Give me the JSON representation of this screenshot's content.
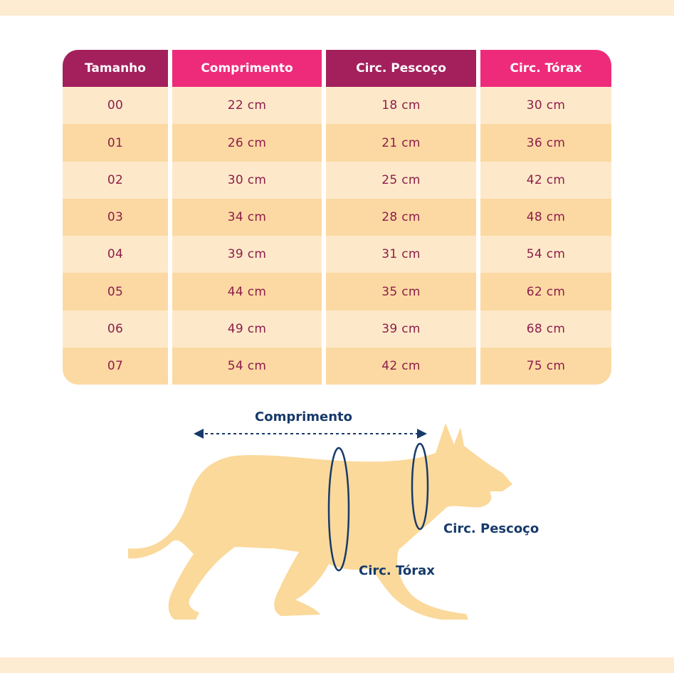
{
  "table": {
    "headers": [
      "Tamanho",
      "Comprimento",
      "Circ. Pescoço",
      "Circ. Tórax"
    ],
    "rows": [
      [
        "00",
        "22 cm",
        "18 cm",
        "30 cm"
      ],
      [
        "01",
        "26 cm",
        "21 cm",
        "36 cm"
      ],
      [
        "02",
        "30 cm",
        "25 cm",
        "42 cm"
      ],
      [
        "03",
        "34 cm",
        "28 cm",
        "48 cm"
      ],
      [
        "04",
        "39 cm",
        "31 cm",
        "54 cm"
      ],
      [
        "05",
        "44 cm",
        "35 cm",
        "62 cm"
      ],
      [
        "06",
        "49 cm",
        "39 cm",
        "68 cm"
      ],
      [
        "07",
        "54 cm",
        "42 cm",
        "75 cm"
      ]
    ]
  },
  "diagram": {
    "length_label": "Comprimento",
    "neck_label": "Circ. Pescoço",
    "chest_label": "Circ. Tórax"
  },
  "colors": {
    "header_dark": "#a3205d",
    "header_pink": "#ee2b7a",
    "row_light": "#fde9c9",
    "row_dark": "#fcd9a3",
    "cell_text": "#8d1d4b",
    "dog_fill": "#fbd99b",
    "measure_blue": "#173a6b"
  }
}
